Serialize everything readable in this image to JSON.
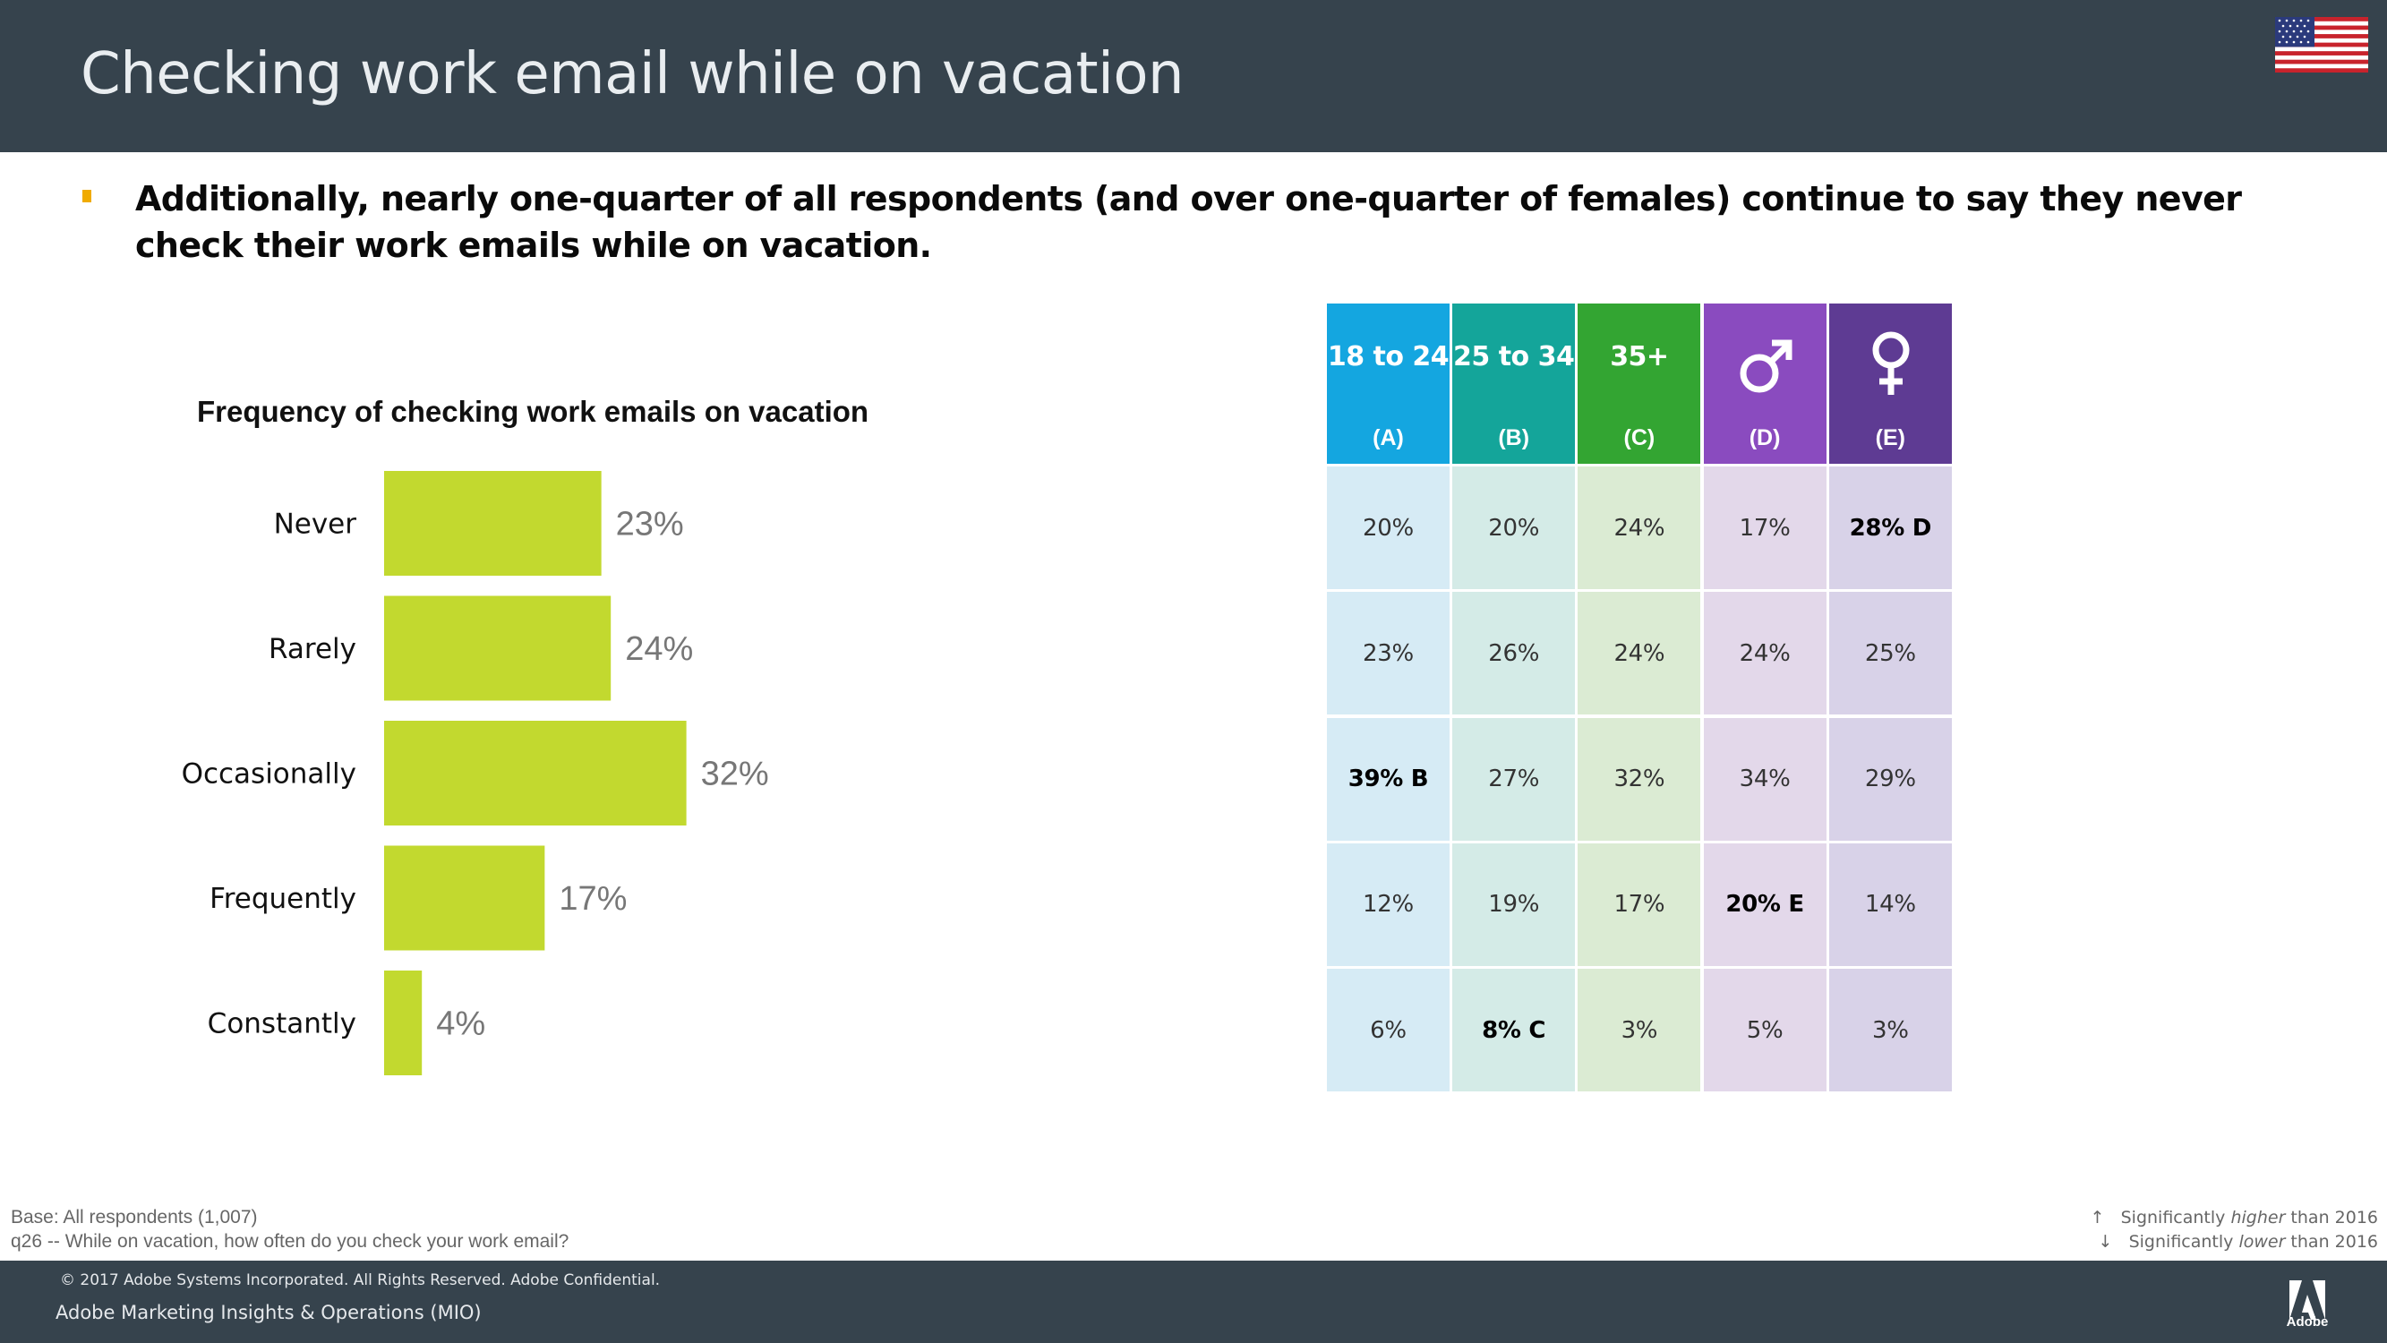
{
  "header": {
    "title": "Checking work email while on vacation"
  },
  "bullet": {
    "text": "Additionally, nearly one-quarter of all respondents (and over one-quarter of females) continue to say they never check their work emails while on vacation.",
    "marker_color": "#f0ab00"
  },
  "chart_data": {
    "type": "bar",
    "orientation": "horizontal",
    "title": "Frequency of checking work emails on vacation",
    "categories": [
      "Never",
      "Rarely",
      "Occasionally",
      "Frequently",
      "Constantly"
    ],
    "values": [
      23,
      24,
      32,
      17,
      4
    ],
    "value_labels": [
      "23%",
      "24%",
      "32%",
      "17%",
      "4%"
    ],
    "unit": "%",
    "bar_color": "#c2d92f",
    "xlim": [
      0,
      100
    ],
    "grid": false
  },
  "crosstab": {
    "columns": [
      {
        "label": "18 to 24",
        "letter": "(A)",
        "color": "#14a6e0",
        "cell_color": "#d6ebf5"
      },
      {
        "label": "25 to 34",
        "letter": "(B)",
        "color": "#14a59a",
        "cell_color": "#d4ebe7"
      },
      {
        "label": "35+",
        "letter": "(C)",
        "color": "#33a532",
        "cell_color": "#dbebd3"
      },
      {
        "label": "",
        "letter": "(D)",
        "icon": "male-symbol-icon",
        "color": "#8a4bbf",
        "cell_color": "#e3d8ea"
      },
      {
        "label": "",
        "letter": "(E)",
        "icon": "female-symbol-icon",
        "color": "#5e3b93",
        "cell_color": "#d8d2e8"
      }
    ],
    "rows": [
      {
        "row": "Never",
        "cells": [
          {
            "text": "20%",
            "sig": false
          },
          {
            "text": "20%",
            "sig": false
          },
          {
            "text": "24%",
            "sig": false
          },
          {
            "text": "17%",
            "sig": false
          },
          {
            "text": "28% D",
            "sig": true
          }
        ]
      },
      {
        "row": "Rarely",
        "cells": [
          {
            "text": "23%",
            "sig": false
          },
          {
            "text": "26%",
            "sig": false
          },
          {
            "text": "24%",
            "sig": false
          },
          {
            "text": "24%",
            "sig": false
          },
          {
            "text": "25%",
            "sig": false
          }
        ]
      },
      {
        "row": "Occasionally",
        "cells": [
          {
            "text": "39% B",
            "sig": true
          },
          {
            "text": "27%",
            "sig": false
          },
          {
            "text": "32%",
            "sig": false
          },
          {
            "text": "34%",
            "sig": false
          },
          {
            "text": "29%",
            "sig": false
          }
        ]
      },
      {
        "row": "Frequently",
        "cells": [
          {
            "text": "12%",
            "sig": false
          },
          {
            "text": "19%",
            "sig": false
          },
          {
            "text": "17%",
            "sig": false
          },
          {
            "text": "20% E",
            "sig": true
          },
          {
            "text": "14%",
            "sig": false
          }
        ]
      },
      {
        "row": "Constantly",
        "cells": [
          {
            "text": "6%",
            "sig": false
          },
          {
            "text": "8% C",
            "sig": true
          },
          {
            "text": "3%",
            "sig": false
          },
          {
            "text": "5%",
            "sig": false
          },
          {
            "text": "3%",
            "sig": false
          }
        ]
      }
    ]
  },
  "footnotes": {
    "base": "Base: All respondents (1,007)",
    "question": "q26 -- While on vacation, how often do you check your work email?"
  },
  "legend": {
    "higher": {
      "arrow": "↑",
      "prefix": "Significantly ",
      "emph": "higher",
      "suffix": " than 2016"
    },
    "lower": {
      "arrow": "↓",
      "prefix": "Significantly ",
      "emph": "lower",
      "suffix": " than 2016"
    }
  },
  "footer": {
    "copyright": "© 2017 Adobe Systems Incorporated.  All Rights Reserved.  Adobe Confidential.",
    "org": "Adobe Marketing Insights & Operations (MIO)",
    "logo_text": "Adobe"
  },
  "icons": {
    "flag": "us-flag-icon",
    "logo": "adobe-logo-icon"
  },
  "colors": {
    "header_bg": "#36434d",
    "footer_bg": "#36434d"
  }
}
